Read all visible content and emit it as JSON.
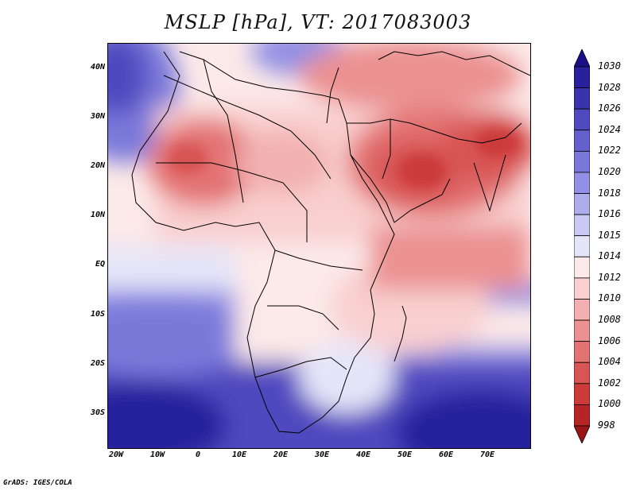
{
  "title": "MSLP [hPa], VT: 2017083003",
  "credit": "GrADS: IGES/COLA",
  "map": {
    "lat_labels": [
      "40N",
      "30N",
      "20N",
      "10N",
      "EQ",
      "10S",
      "20S",
      "30S"
    ],
    "lon_labels": [
      "20W",
      "10W",
      "0",
      "10E",
      "20E",
      "30E",
      "40E",
      "50E",
      "60E",
      "70E"
    ],
    "lat_range": [
      -36,
      45
    ],
    "lon_range": [
      -22,
      80
    ]
  },
  "colorbar": {
    "levels": [
      "1030",
      "1028",
      "1026",
      "1024",
      "1022",
      "1020",
      "1018",
      "1016",
      "1015",
      "1014",
      "1012",
      "1010",
      "1008",
      "1006",
      "1004",
      "1002",
      "1000",
      "998"
    ],
    "colors": [
      "#1a0f88",
      "#28209d",
      "#3a33ae",
      "#4f4abf",
      "#6461ce",
      "#7a79da",
      "#9290e4",
      "#adadec",
      "#c9c9f3",
      "#e5e5f9",
      "#fce9e9",
      "#f9cfcf",
      "#f2b0b0",
      "#eb9191",
      "#e37272",
      "#d85555",
      "#cc3a3a",
      "#b52525",
      "#9a1616"
    ]
  }
}
